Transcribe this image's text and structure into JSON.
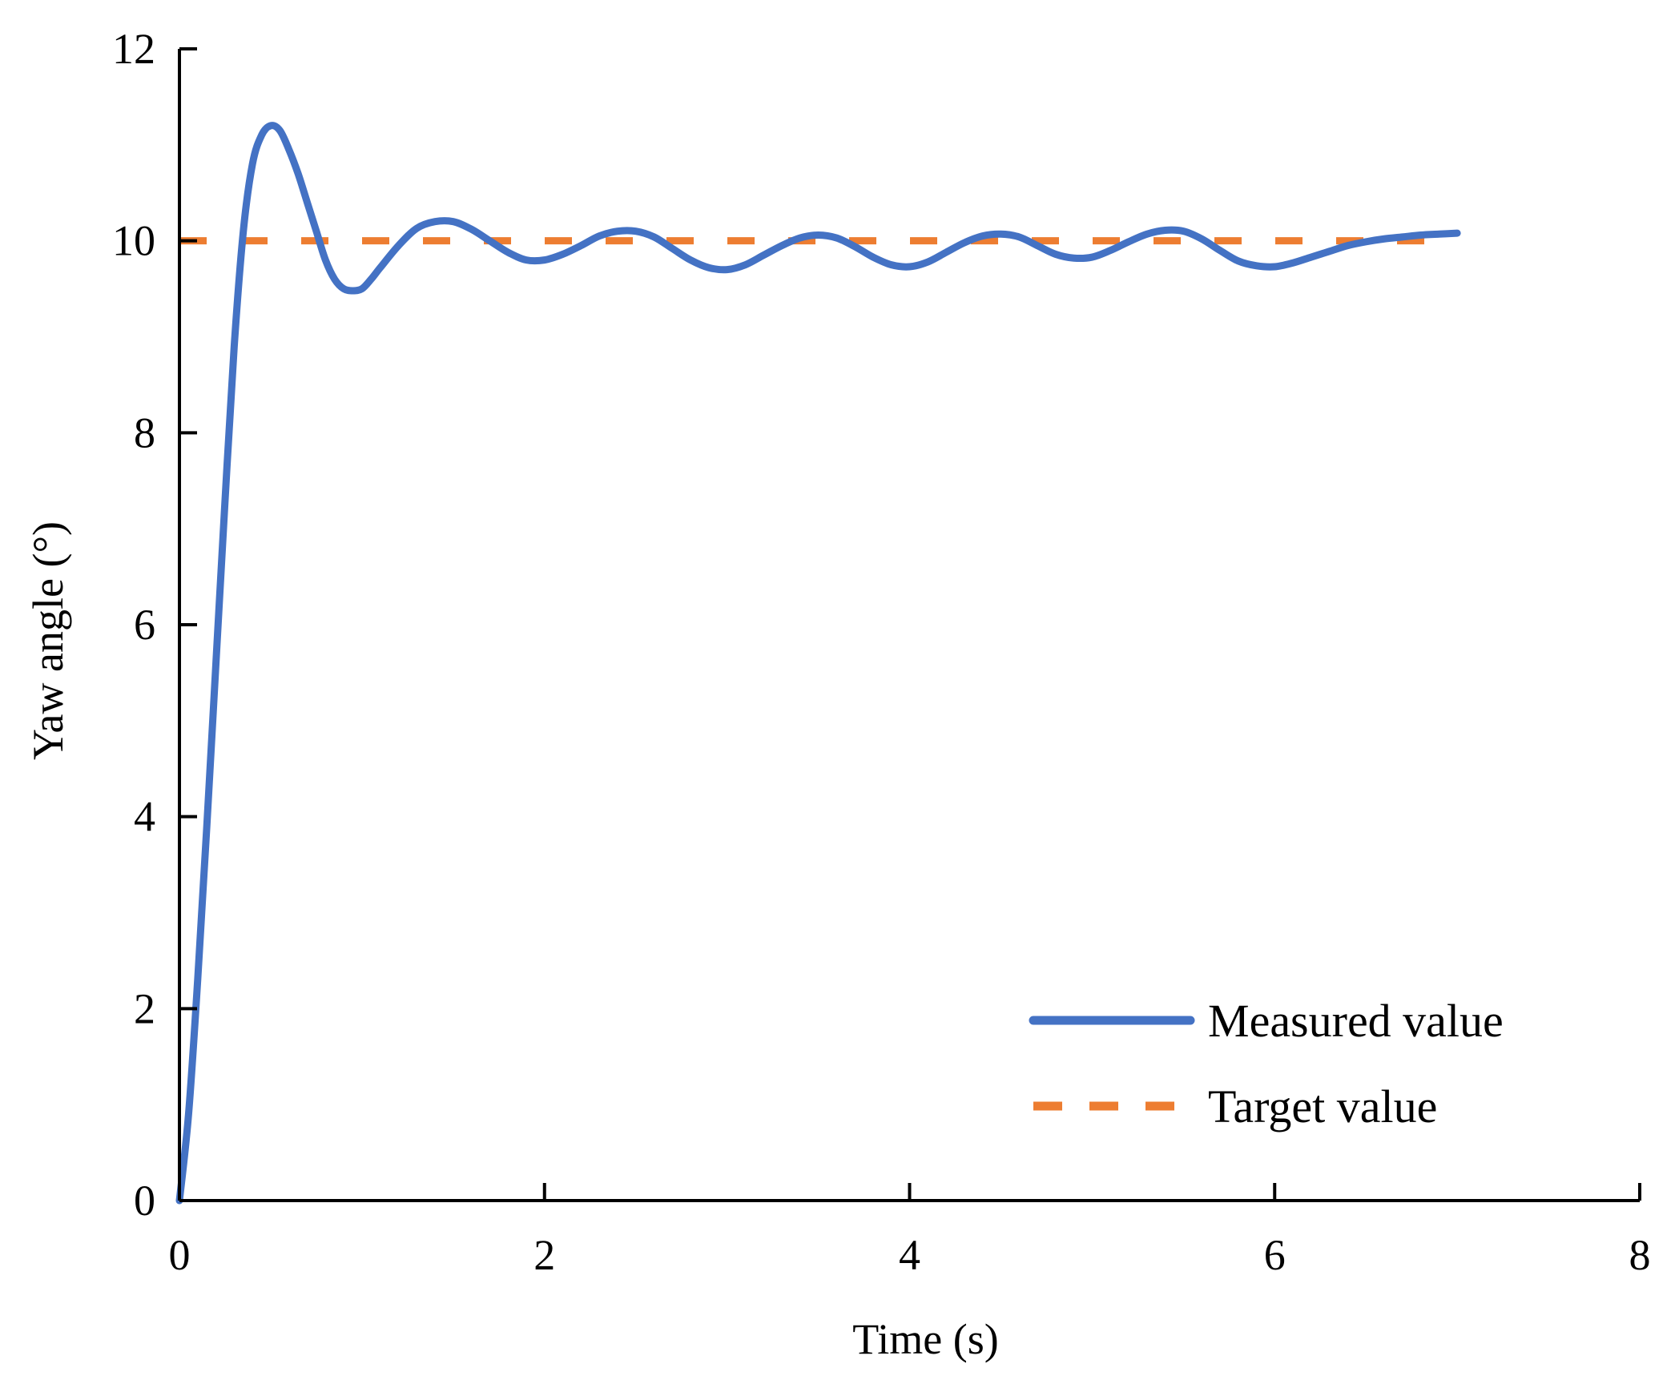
{
  "chart_data": {
    "type": "line",
    "title": "",
    "xlabel": "Time (s)",
    "ylabel": "Yaw angle (°)",
    "xlim": [
      0,
      8
    ],
    "ylim": [
      0,
      12
    ],
    "xticks": [
      0,
      2,
      4,
      6,
      8
    ],
    "yticks": [
      0,
      2,
      4,
      6,
      8,
      10,
      12
    ],
    "xtick_labels": [
      "0",
      "2",
      "4",
      "6",
      "8"
    ],
    "ytick_labels": [
      "0",
      "2",
      "4",
      "6",
      "8",
      "10",
      "12"
    ],
    "grid": false,
    "legend_position": "bottom-right",
    "series": [
      {
        "name": "Measured value",
        "color": "#4472C4",
        "style": "solid",
        "x": [
          0,
          0.05,
          0.1,
          0.15,
          0.2,
          0.25,
          0.3,
          0.35,
          0.4,
          0.45,
          0.5,
          0.55,
          0.6,
          0.65,
          0.7,
          0.75,
          0.8,
          0.85,
          0.9,
          0.95,
          1.0,
          1.05,
          1.1,
          1.2,
          1.3,
          1.4,
          1.5,
          1.6,
          1.7,
          1.8,
          1.9,
          2.0,
          2.1,
          2.2,
          2.3,
          2.4,
          2.5,
          2.6,
          2.7,
          2.8,
          2.9,
          3.0,
          3.1,
          3.2,
          3.3,
          3.4,
          3.5,
          3.6,
          3.7,
          3.8,
          3.9,
          4.0,
          4.1,
          4.2,
          4.3,
          4.4,
          4.5,
          4.6,
          4.7,
          4.8,
          4.9,
          5.0,
          5.1,
          5.2,
          5.3,
          5.4,
          5.5,
          5.6,
          5.7,
          5.8,
          5.9,
          6.0,
          6.1,
          6.2,
          6.3,
          6.4,
          6.5,
          6.6,
          6.7,
          6.8,
          6.9,
          7.0
        ],
        "y": [
          0,
          0.9,
          2.3,
          3.9,
          5.6,
          7.3,
          8.9,
          10.1,
          10.8,
          11.1,
          11.2,
          11.15,
          10.95,
          10.7,
          10.4,
          10.1,
          9.8,
          9.6,
          9.5,
          9.48,
          9.5,
          9.6,
          9.72,
          9.95,
          10.13,
          10.2,
          10.2,
          10.12,
          10.0,
          9.88,
          9.8,
          9.8,
          9.86,
          9.95,
          10.05,
          10.1,
          10.1,
          10.04,
          9.92,
          9.8,
          9.72,
          9.7,
          9.75,
          9.85,
          9.95,
          10.03,
          10.06,
          10.03,
          9.94,
          9.83,
          9.75,
          9.73,
          9.78,
          9.88,
          9.98,
          10.05,
          10.07,
          10.04,
          9.95,
          9.86,
          9.82,
          9.83,
          9.9,
          9.99,
          10.07,
          10.11,
          10.1,
          10.02,
          9.9,
          9.79,
          9.74,
          9.73,
          9.77,
          9.83,
          9.89,
          9.95,
          9.99,
          10.02,
          10.04,
          10.06,
          10.07,
          10.08
        ]
      },
      {
        "name": "Target value",
        "color": "#ED7D31",
        "style": "dashed",
        "x": [
          0,
          6.85
        ],
        "y": [
          10,
          10
        ]
      }
    ]
  }
}
